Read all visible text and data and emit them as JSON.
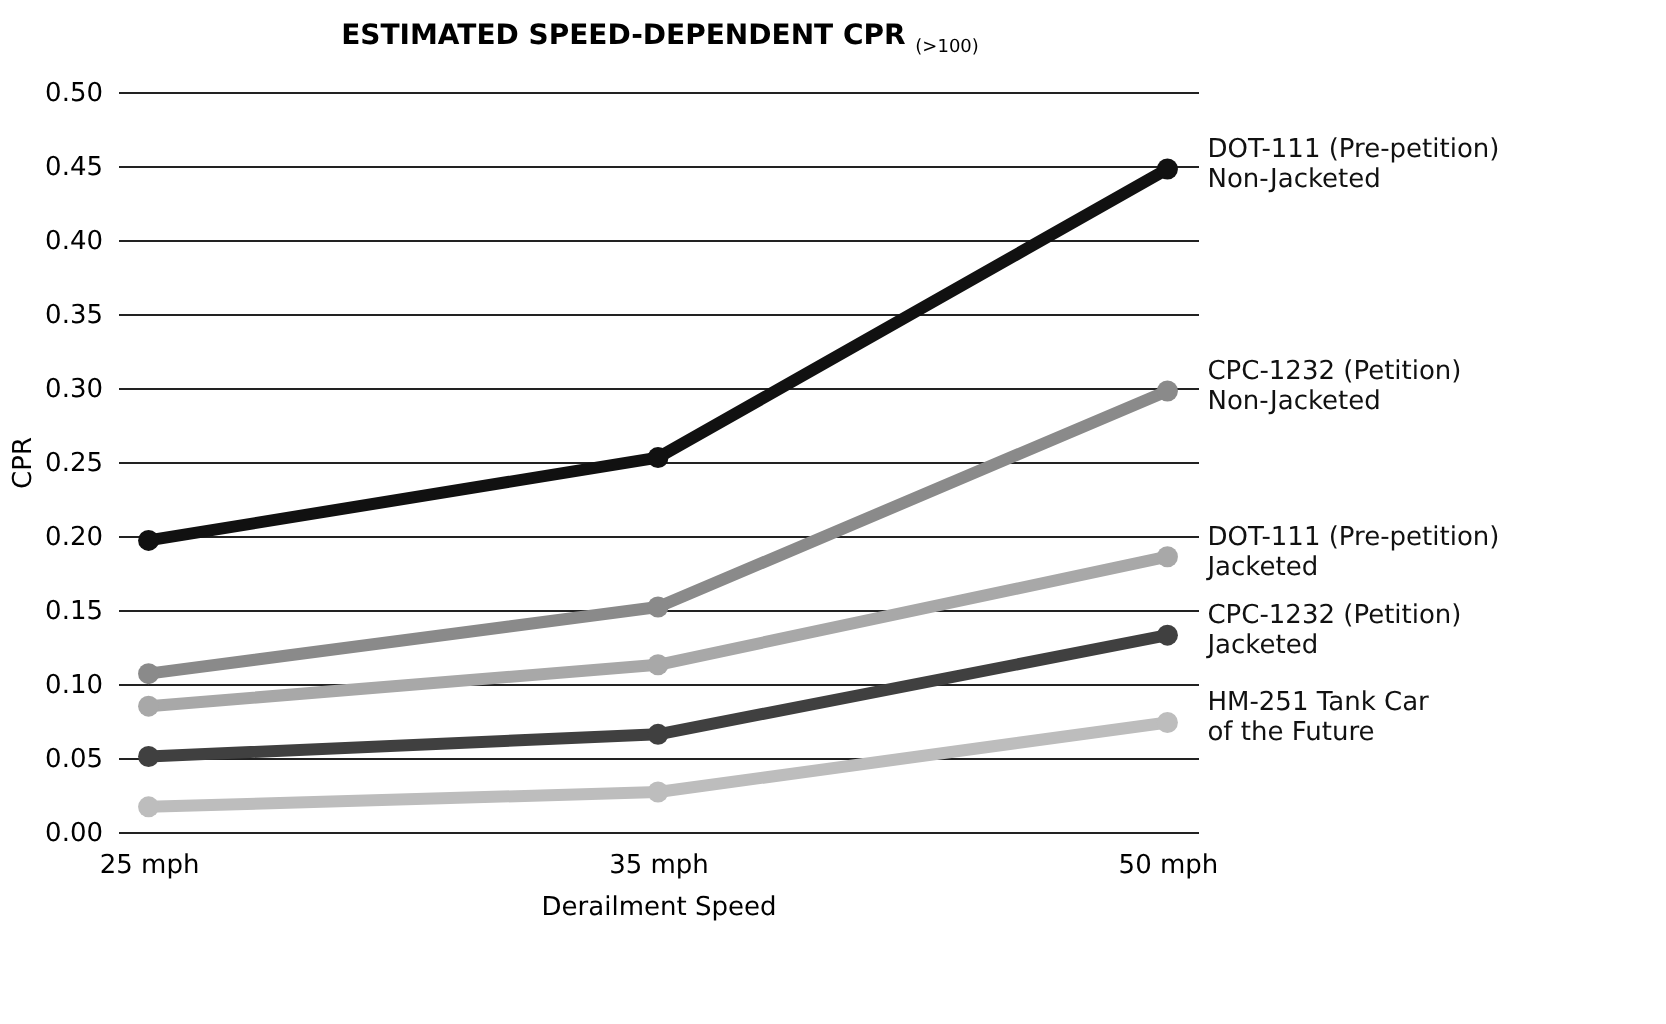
{
  "chart_data": {
    "type": "line",
    "title": "ESTIMATED SPEED-DEPENDENT CPR $_{(>100)}$",
    "xlabel": "Derailment Speed",
    "ylabel": "CPR",
    "categories": [
      "25 mph",
      "35 mph",
      "50 mph"
    ],
    "series": [
      {
        "name": "DOT-111 (Pre-petition)\nNon-Jacketed",
        "color": "#111111",
        "values": [
          0.197,
          0.253,
          0.448
        ]
      },
      {
        "name": "CPC-1232 (Petition)\nNon-Jacketed",
        "color": "#8a8a8a",
        "values": [
          0.107,
          0.152,
          0.298
        ]
      },
      {
        "name": "DOT-111 (Pre-petition)\nJacketed",
        "color": "#a8a8a8",
        "values": [
          0.085,
          0.113,
          0.186
        ]
      },
      {
        "name": "CPC-1232 (Petition)\nJacketed",
        "color": "#404040",
        "values": [
          0.051,
          0.066,
          0.133
        ]
      },
      {
        "name": "HM-251 Tank Car\nof the Future",
        "color": "#bdbdbd",
        "values": [
          0.017,
          0.027,
          0.074
        ]
      }
    ],
    "ylim": [
      0,
      0.5
    ],
    "yticks": [
      {
        "value": 0,
        "label": "0.00"
      },
      0.05,
      {
        "value": 0.1,
        "label": "0.10"
      },
      0.15,
      {
        "value": 0.2,
        "label": "0.20"
      },
      0.25,
      {
        "value": 0.3,
        "label": "0.30"
      },
      0.35,
      {
        "value": 0.4,
        "label": "0.40"
      },
      0.45,
      {
        "value": 0.5,
        "label": "0.50"
      }
    ],
    "grid": "y",
    "marker": "circle",
    "line_style": "solid"
  }
}
